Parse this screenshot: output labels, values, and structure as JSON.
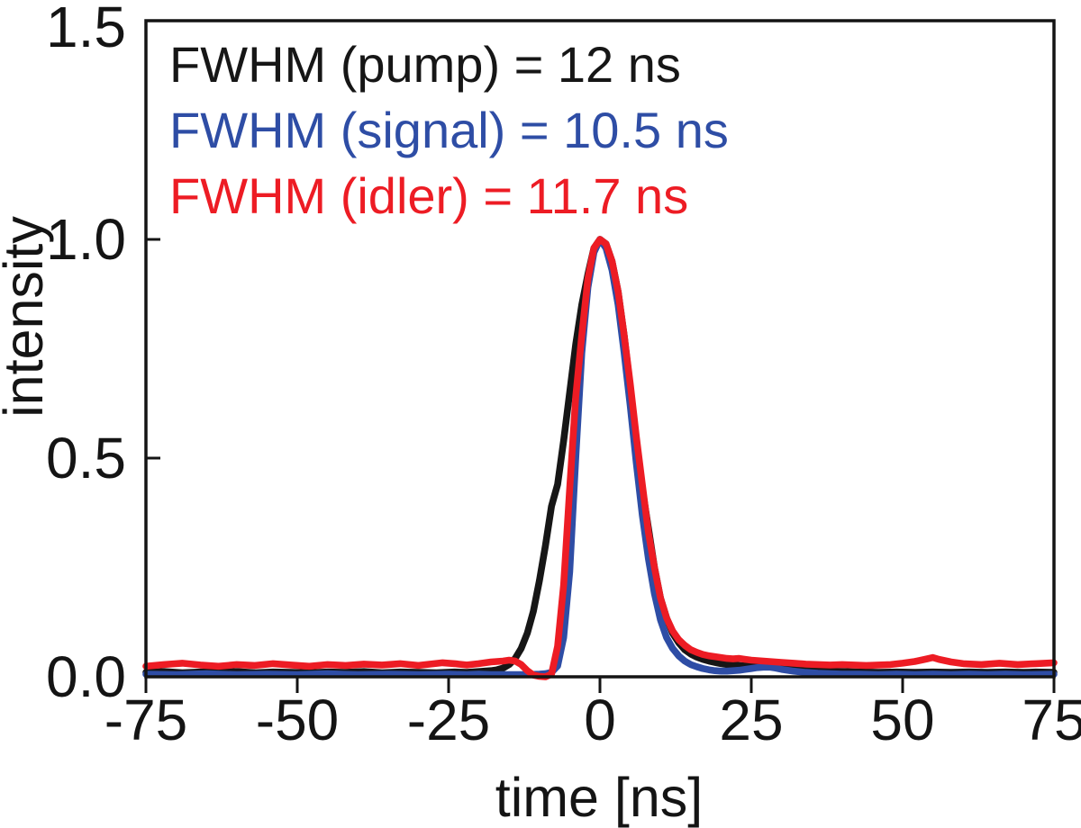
{
  "chart_data": {
    "type": "line",
    "title": "",
    "xlabel": "time [ns]",
    "ylabel": "intensity",
    "xlim": [
      -75,
      75
    ],
    "ylim": [
      0,
      1.5
    ],
    "grid": false,
    "background": "#ffffff",
    "axis_color": "#141414",
    "x_ticks": [
      -75,
      -50,
      -25,
      0,
      25,
      50,
      75
    ],
    "x_tick_labels": [
      "-75",
      "-50",
      "-25",
      "0",
      "25",
      "50",
      "75"
    ],
    "y_ticks": [
      0,
      0.5,
      1.0,
      1.5
    ],
    "y_tick_labels": [
      "0.0",
      "0.5",
      "1.0",
      "1.5"
    ],
    "legend_position": "top-left-inside",
    "series": [
      {
        "name": "pump",
        "legend_label": "FWHM (pump) = 12 ns",
        "fwhm_label_value": "12 ns",
        "color": "#161616",
        "points": [
          [
            -75,
            0.01
          ],
          [
            -72,
            0.012
          ],
          [
            -69,
            0.009
          ],
          [
            -66,
            0.011
          ],
          [
            -63,
            0.01
          ],
          [
            -60,
            0.012
          ],
          [
            -57,
            0.009
          ],
          [
            -54,
            0.011
          ],
          [
            -51,
            0.01
          ],
          [
            -48,
            0.009
          ],
          [
            -45,
            0.011
          ],
          [
            -42,
            0.01
          ],
          [
            -39,
            0.012
          ],
          [
            -36,
            0.009
          ],
          [
            -33,
            0.011
          ],
          [
            -30,
            0.01
          ],
          [
            -27,
            0.009
          ],
          [
            -24,
            0.011
          ],
          [
            -22,
            0.01
          ],
          [
            -20,
            0.012
          ],
          [
            -18,
            0.014
          ],
          [
            -17,
            0.016
          ],
          [
            -16,
            0.02
          ],
          [
            -15,
            0.028
          ],
          [
            -14,
            0.042
          ],
          [
            -13,
            0.065
          ],
          [
            -12,
            0.1
          ],
          [
            -11,
            0.15
          ],
          [
            -10,
            0.22
          ],
          [
            -9,
            0.3
          ],
          [
            -8,
            0.39
          ],
          [
            -7,
            0.44
          ],
          [
            -6,
            0.54
          ],
          [
            -5,
            0.65
          ],
          [
            -4,
            0.76
          ],
          [
            -3,
            0.85
          ],
          [
            -2,
            0.92
          ],
          [
            -1,
            0.98
          ],
          [
            0,
            1.0
          ],
          [
            1,
            0.99
          ],
          [
            2,
            0.95
          ],
          [
            3,
            0.88
          ],
          [
            4,
            0.78
          ],
          [
            5,
            0.66
          ],
          [
            6,
            0.54
          ],
          [
            7,
            0.43
          ],
          [
            8,
            0.34
          ],
          [
            9,
            0.25
          ],
          [
            10,
            0.18
          ],
          [
            11,
            0.135
          ],
          [
            12,
            0.1
          ],
          [
            13,
            0.078
          ],
          [
            14,
            0.062
          ],
          [
            15,
            0.052
          ],
          [
            16,
            0.045
          ],
          [
            17,
            0.04
          ],
          [
            18,
            0.036
          ],
          [
            19,
            0.033
          ],
          [
            20,
            0.03
          ],
          [
            21,
            0.028
          ],
          [
            22,
            0.027
          ],
          [
            23,
            0.026
          ],
          [
            24,
            0.025
          ],
          [
            25,
            0.024
          ],
          [
            26,
            0.024
          ],
          [
            27,
            0.025
          ],
          [
            28,
            0.026
          ],
          [
            29,
            0.024
          ],
          [
            30,
            0.022
          ],
          [
            32,
            0.019
          ],
          [
            34,
            0.016
          ],
          [
            36,
            0.014
          ],
          [
            38,
            0.013
          ],
          [
            40,
            0.012
          ],
          [
            43,
            0.011
          ],
          [
            46,
            0.01
          ],
          [
            49,
            0.011
          ],
          [
            52,
            0.01
          ],
          [
            55,
            0.011
          ],
          [
            58,
            0.01
          ],
          [
            61,
            0.011
          ],
          [
            64,
            0.01
          ],
          [
            67,
            0.011
          ],
          [
            70,
            0.01
          ],
          [
            72,
            0.011
          ],
          [
            75,
            0.01
          ]
        ]
      },
      {
        "name": "signal",
        "legend_label": "FWHM (signal) = 10.5 ns",
        "fwhm_label_value": "10.5 ns",
        "color": "#2e4da5",
        "points": [
          [
            -75,
            0.006
          ],
          [
            -70,
            0.005
          ],
          [
            -65,
            0.007
          ],
          [
            -60,
            0.005
          ],
          [
            -55,
            0.006
          ],
          [
            -50,
            0.005
          ],
          [
            -45,
            0.007
          ],
          [
            -40,
            0.005
          ],
          [
            -35,
            0.006
          ],
          [
            -30,
            0.005
          ],
          [
            -25,
            0.006
          ],
          [
            -22,
            0.005
          ],
          [
            -20,
            0.006
          ],
          [
            -18,
            0.005
          ],
          [
            -16,
            0.005
          ],
          [
            -14,
            0.005
          ],
          [
            -12,
            0.005
          ],
          [
            -10,
            0.006
          ],
          [
            -9,
            0.007
          ],
          [
            -8,
            0.01
          ],
          [
            -7,
            0.025
          ],
          [
            -6,
            0.09
          ],
          [
            -5,
            0.24
          ],
          [
            -4,
            0.5
          ],
          [
            -3,
            0.74
          ],
          [
            -2,
            0.89
          ],
          [
            -1,
            0.97
          ],
          [
            0,
            1.0
          ],
          [
            1,
            0.98
          ],
          [
            2,
            0.93
          ],
          [
            3,
            0.85
          ],
          [
            4,
            0.74
          ],
          [
            5,
            0.62
          ],
          [
            6,
            0.49
          ],
          [
            7,
            0.37
          ],
          [
            8,
            0.27
          ],
          [
            9,
            0.19
          ],
          [
            10,
            0.13
          ],
          [
            11,
            0.09
          ],
          [
            12,
            0.065
          ],
          [
            13,
            0.048
          ],
          [
            14,
            0.036
          ],
          [
            15,
            0.028
          ],
          [
            16,
            0.023
          ],
          [
            17,
            0.019
          ],
          [
            18,
            0.016
          ],
          [
            19,
            0.014
          ],
          [
            20,
            0.013
          ],
          [
            21,
            0.013
          ],
          [
            22,
            0.014
          ],
          [
            23,
            0.015
          ],
          [
            24,
            0.017
          ],
          [
            25,
            0.019
          ],
          [
            26,
            0.021
          ],
          [
            27,
            0.022
          ],
          [
            28,
            0.022
          ],
          [
            29,
            0.02
          ],
          [
            30,
            0.017
          ],
          [
            32,
            0.013
          ],
          [
            34,
            0.01
          ],
          [
            36,
            0.008
          ],
          [
            38,
            0.007
          ],
          [
            40,
            0.006
          ],
          [
            43,
            0.006
          ],
          [
            46,
            0.005
          ],
          [
            49,
            0.006
          ],
          [
            52,
            0.005
          ],
          [
            55,
            0.006
          ],
          [
            58,
            0.005
          ],
          [
            61,
            0.006
          ],
          [
            64,
            0.005
          ],
          [
            67,
            0.006
          ],
          [
            70,
            0.005
          ],
          [
            75,
            0.006
          ]
        ]
      },
      {
        "name": "idler",
        "legend_label": "FWHM (idler) = 11.7 ns",
        "fwhm_label_value": "11.7 ns",
        "color": "#ed1c24",
        "points": [
          [
            -75,
            0.024
          ],
          [
            -72,
            0.028
          ],
          [
            -69,
            0.031
          ],
          [
            -66,
            0.027
          ],
          [
            -63,
            0.024
          ],
          [
            -60,
            0.028
          ],
          [
            -57,
            0.026
          ],
          [
            -54,
            0.03
          ],
          [
            -51,
            0.027
          ],
          [
            -48,
            0.024
          ],
          [
            -45,
            0.028
          ],
          [
            -42,
            0.026
          ],
          [
            -39,
            0.029
          ],
          [
            -36,
            0.027
          ],
          [
            -33,
            0.03
          ],
          [
            -30,
            0.026
          ],
          [
            -28,
            0.029
          ],
          [
            -26,
            0.032
          ],
          [
            -24,
            0.03
          ],
          [
            -22,
            0.027
          ],
          [
            -20,
            0.03
          ],
          [
            -18,
            0.034
          ],
          [
            -16,
            0.036
          ],
          [
            -15,
            0.038
          ],
          [
            -14,
            0.036
          ],
          [
            -13,
            0.028
          ],
          [
            -12,
            0.014
          ],
          [
            -11,
            0.004
          ],
          [
            -10,
            0.001
          ],
          [
            -9,
            0.0
          ],
          [
            -8,
            0.006
          ],
          [
            -7,
            0.07
          ],
          [
            -6,
            0.21
          ],
          [
            -5,
            0.43
          ],
          [
            -4,
            0.64
          ],
          [
            -3,
            0.78
          ],
          [
            -2,
            0.91
          ],
          [
            -1,
            0.98
          ],
          [
            0,
            1.0
          ],
          [
            1,
            0.99
          ],
          [
            2,
            0.95
          ],
          [
            3,
            0.88
          ],
          [
            4,
            0.78
          ],
          [
            5,
            0.67
          ],
          [
            6,
            0.55
          ],
          [
            7,
            0.44
          ],
          [
            8,
            0.33
          ],
          [
            9,
            0.25
          ],
          [
            10,
            0.18
          ],
          [
            11,
            0.135
          ],
          [
            12,
            0.105
          ],
          [
            13,
            0.085
          ],
          [
            14,
            0.072
          ],
          [
            15,
            0.062
          ],
          [
            16,
            0.056
          ],
          [
            17,
            0.051
          ],
          [
            18,
            0.048
          ],
          [
            19,
            0.046
          ],
          [
            20,
            0.044
          ],
          [
            21,
            0.042
          ],
          [
            22,
            0.041
          ],
          [
            23,
            0.042
          ],
          [
            24,
            0.04
          ],
          [
            25,
            0.038
          ],
          [
            26,
            0.037
          ],
          [
            27,
            0.036
          ],
          [
            28,
            0.035
          ],
          [
            29,
            0.034
          ],
          [
            30,
            0.033
          ],
          [
            32,
            0.031
          ],
          [
            34,
            0.029
          ],
          [
            36,
            0.028
          ],
          [
            38,
            0.027
          ],
          [
            40,
            0.028
          ],
          [
            42,
            0.027
          ],
          [
            44,
            0.026
          ],
          [
            46,
            0.027
          ],
          [
            48,
            0.028
          ],
          [
            50,
            0.031
          ],
          [
            52,
            0.035
          ],
          [
            54,
            0.041
          ],
          [
            55,
            0.044
          ],
          [
            56,
            0.04
          ],
          [
            58,
            0.034
          ],
          [
            60,
            0.03
          ],
          [
            63,
            0.028
          ],
          [
            66,
            0.031
          ],
          [
            69,
            0.028
          ],
          [
            72,
            0.03
          ],
          [
            75,
            0.032
          ]
        ]
      }
    ]
  }
}
